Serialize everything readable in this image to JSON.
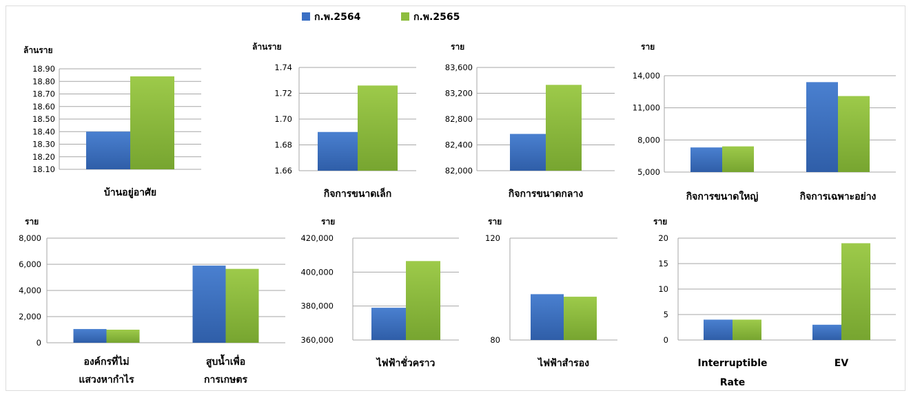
{
  "legend": {
    "series": [
      {
        "name": "ก.พ.2564",
        "color": "#3a6fc4"
      },
      {
        "name": "ก.พ.2565",
        "color": "#8dbd3e"
      }
    ]
  },
  "chart_data": [
    {
      "type": "bar",
      "unit": "ล้านราย",
      "categories": [
        [
          "บ้านอยู่อาศัย"
        ]
      ],
      "series": [
        {
          "name": "ก.พ.2564",
          "values": [
            18.4
          ]
        },
        {
          "name": "ก.พ.2565",
          "values": [
            18.84
          ]
        }
      ],
      "ylim": [
        18.1,
        18.9
      ],
      "yticks": [
        18.9,
        18.8,
        18.7,
        18.6,
        18.5,
        18.4,
        18.3,
        18.2,
        18.1
      ],
      "ytick_labels": [
        "18.90",
        "18.80",
        "18.70",
        "18.60",
        "18.50",
        "18.40",
        "18.30",
        "18.20",
        "18.10"
      ]
    },
    {
      "type": "bar",
      "unit": "ล้านราย",
      "categories": [
        [
          "กิจการขนาดเล็ก"
        ]
      ],
      "series": [
        {
          "name": "ก.พ.2564",
          "values": [
            1.69
          ]
        },
        {
          "name": "ก.พ.2565",
          "values": [
            1.726
          ]
        }
      ],
      "ylim": [
        1.66,
        1.74
      ],
      "yticks": [
        1.74,
        1.72,
        1.7,
        1.68,
        1.66
      ],
      "ytick_labels": [
        "1.74",
        "1.72",
        "1.70",
        "1.68",
        "1.66"
      ]
    },
    {
      "type": "bar",
      "unit": "ราย",
      "categories": [
        [
          "กิจการขนาดกลาง"
        ]
      ],
      "series": [
        {
          "name": "ก.พ.2564",
          "values": [
            82570
          ]
        },
        {
          "name": "ก.พ.2565",
          "values": [
            83330
          ]
        }
      ],
      "ylim": [
        82000,
        83600
      ],
      "yticks": [
        83600,
        83200,
        82800,
        82400,
        82000
      ],
      "ytick_labels": [
        "83,600",
        "83,200",
        "82,800",
        "82,400",
        "82,000"
      ]
    },
    {
      "type": "bar",
      "unit": "ราย",
      "categories": [
        [
          "กิจการขนาดใหญ่"
        ],
        [
          "กิจการเฉพาะอย่าง"
        ]
      ],
      "series": [
        {
          "name": "ก.พ.2564",
          "values": [
            7300,
            13400
          ]
        },
        {
          "name": "ก.พ.2565",
          "values": [
            7400,
            12100
          ]
        }
      ],
      "ylim": [
        5000,
        14000
      ],
      "yticks": [
        14000,
        11000,
        8000,
        5000
      ],
      "ytick_labels": [
        "14,000",
        "11,000",
        "8,000",
        "5,000"
      ]
    },
    {
      "type": "bar",
      "unit": "ราย",
      "categories": [
        [
          "องค์กรที่ไม่",
          "แสวงหากำไร"
        ],
        [
          "สูบน้ำเพื่อ",
          "การเกษตร"
        ]
      ],
      "series": [
        {
          "name": "ก.พ.2564",
          "values": [
            1050,
            5900
          ]
        },
        {
          "name": "ก.พ.2565",
          "values": [
            1000,
            5650
          ]
        }
      ],
      "ylim": [
        0,
        8000
      ],
      "yticks": [
        8000,
        6000,
        4000,
        2000,
        0
      ],
      "ytick_labels": [
        "8,000",
        "6,000",
        "4,000",
        "2,000",
        "0"
      ]
    },
    {
      "type": "bar",
      "unit": "ราย",
      "categories": [
        [
          "ไฟฟ้าชั่วคราว"
        ]
      ],
      "series": [
        {
          "name": "ก.พ.2564",
          "values": [
            379000
          ]
        },
        {
          "name": "ก.พ.2565",
          "values": [
            406500
          ]
        }
      ],
      "ylim": [
        360000,
        420000
      ],
      "yticks": [
        420000,
        400000,
        380000,
        360000
      ],
      "ytick_labels": [
        "420,000",
        "400,000",
        "380,000",
        "360,000"
      ]
    },
    {
      "type": "bar",
      "unit": "ราย",
      "categories": [
        [
          "ไฟฟ้าสำรอง"
        ]
      ],
      "series": [
        {
          "name": "ก.พ.2564",
          "values": [
            98
          ]
        },
        {
          "name": "ก.พ.2565",
          "values": [
            97
          ]
        }
      ],
      "ylim": [
        80,
        120
      ],
      "yticks": [
        120,
        80
      ],
      "ytick_labels": [
        "120",
        "80"
      ]
    },
    {
      "type": "bar",
      "unit": "ราย",
      "categories": [
        [
          "Interruptible",
          "Rate"
        ],
        [
          "EV"
        ]
      ],
      "series": [
        {
          "name": "ก.พ.2564",
          "values": [
            4,
            3
          ]
        },
        {
          "name": "ก.พ.2565",
          "values": [
            4,
            19
          ]
        }
      ],
      "ylim": [
        0,
        20
      ],
      "yticks": [
        20,
        15,
        10,
        5,
        0
      ],
      "ytick_labels": [
        "20",
        "15",
        "10",
        "5",
        "0"
      ]
    }
  ]
}
